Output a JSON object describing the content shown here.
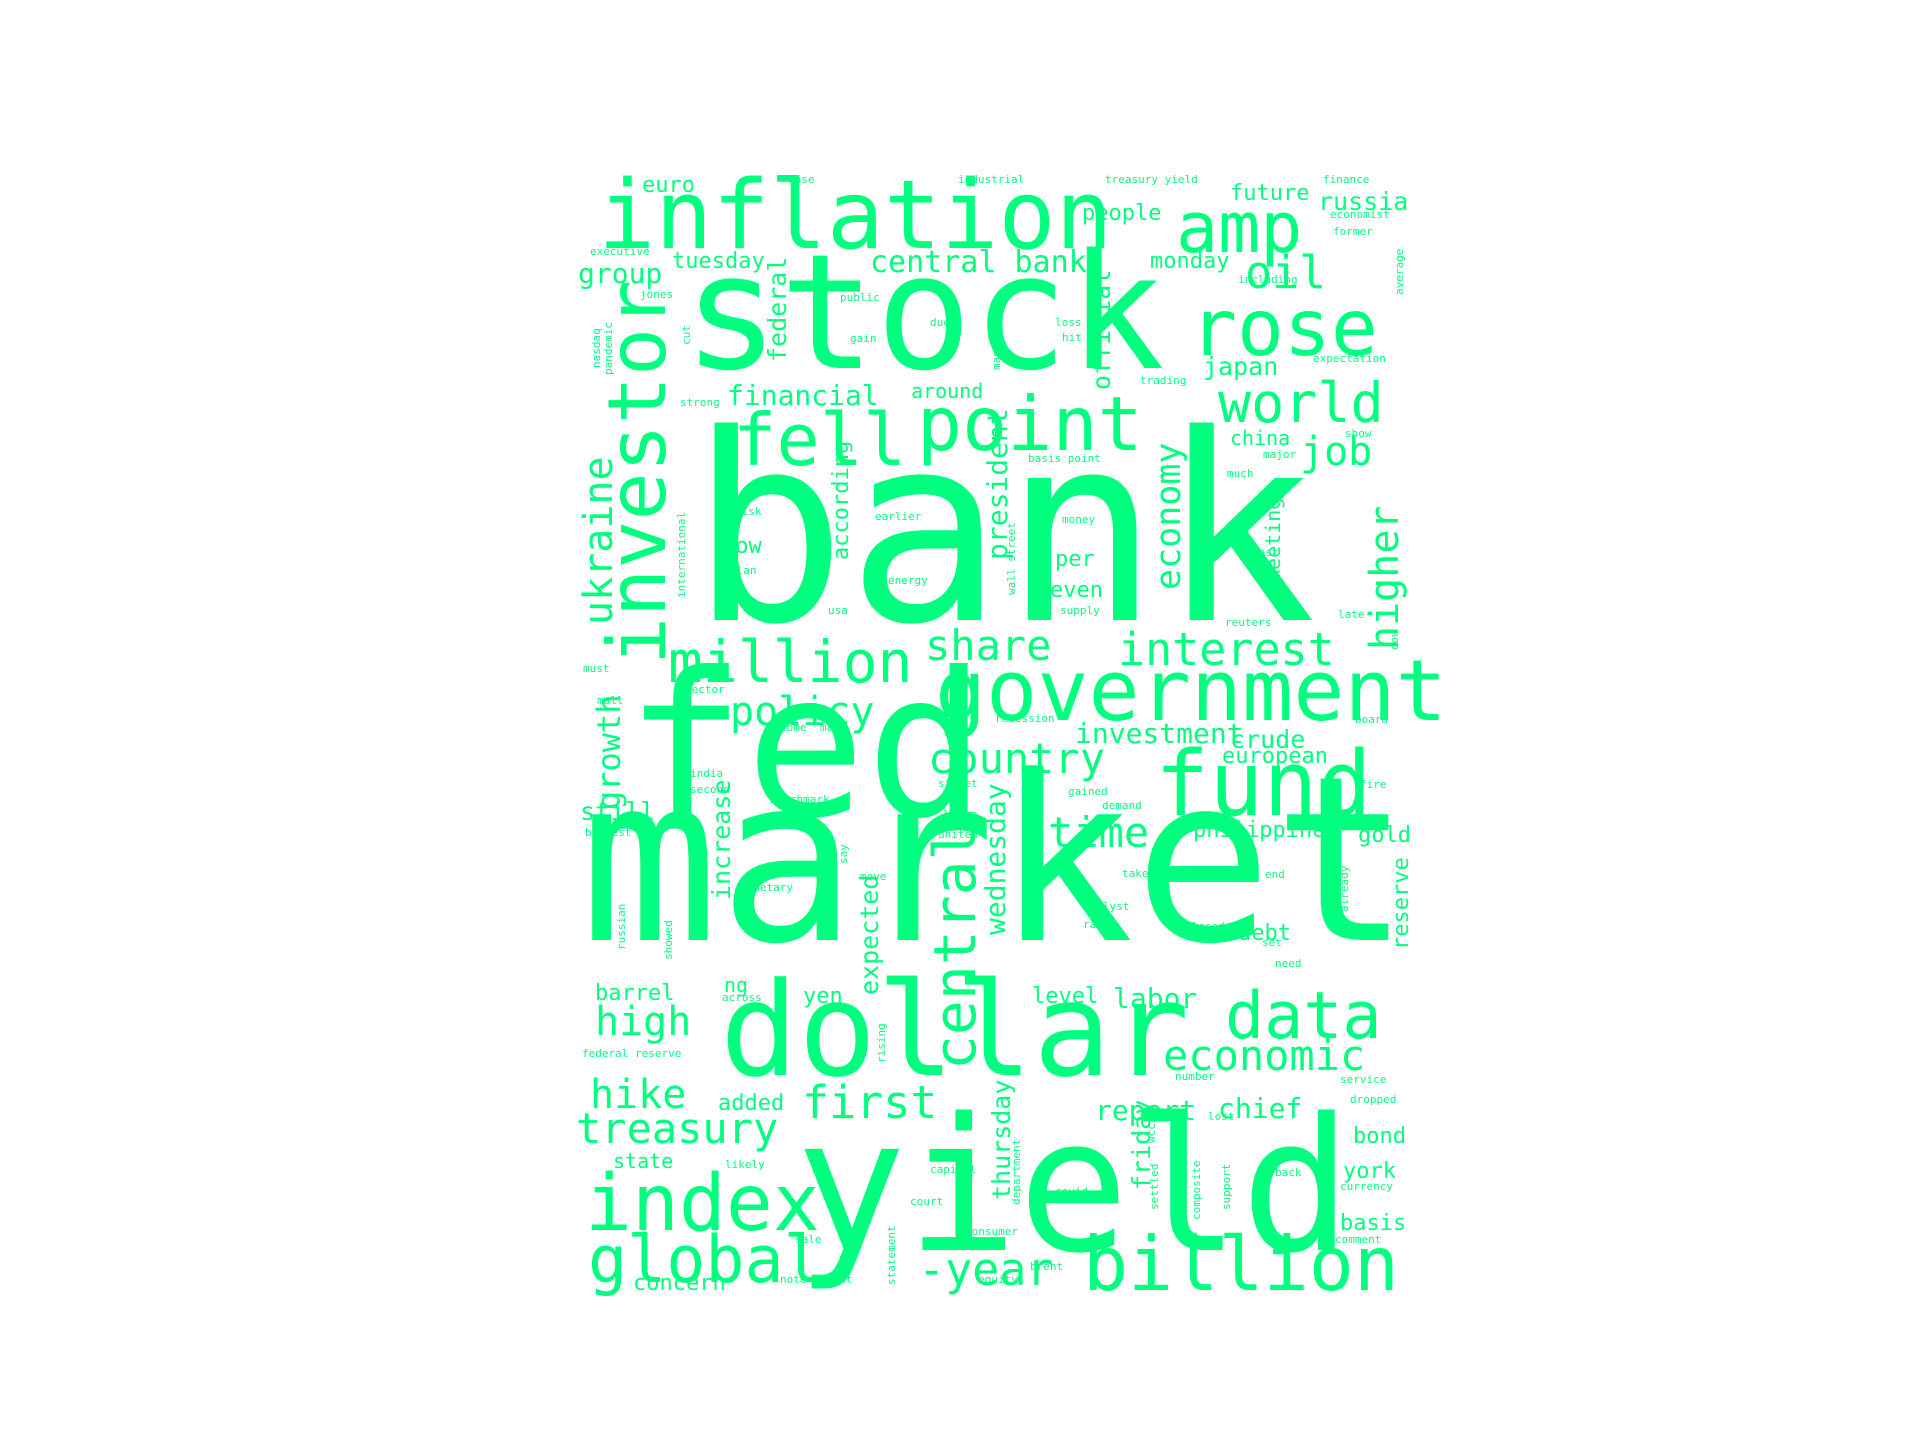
{
  "cloud": {
    "color": "#00ff7f",
    "background": "#ffffff",
    "words": [
      "bank",
      "market",
      "fed",
      "stock",
      "yield",
      "dollar",
      "inflation",
      "investor",
      "government",
      "fund",
      "index",
      "billion",
      "point",
      "fell",
      "rose",
      "amp",
      "data",
      "global",
      "million",
      "interest",
      "treasury",
      "economic",
      "share",
      "country",
      "policy",
      "first",
      "world",
      "oil",
      "ukraine",
      "higher",
      "central",
      "economy",
      "time",
      "job",
      "hike",
      "high",
      "growth",
      "-year",
      "central bank",
      "financial",
      "investment",
      "president",
      "wednesday",
      "japan",
      "crude",
      "russia",
      "people",
      "european",
      "report",
      "chief",
      "labor",
      "increase",
      "expected",
      "thursday",
      "friday",
      "philippine",
      "according",
      "group",
      "tuesday",
      "monday",
      "future",
      "euro",
      "official",
      "federal",
      "around",
      "low",
      "still",
      "barrel",
      "level",
      "added",
      "yen",
      "debt",
      "gold",
      "reserve",
      "bond",
      "york",
      "basis",
      "state",
      "concern",
      "even",
      "per",
      "meeting",
      "china",
      "ng",
      "case",
      "industrial",
      "treasury yield",
      "finance",
      "economist",
      "former",
      "executive",
      "including",
      "average",
      "jones",
      "public",
      "nasdaq",
      "cut",
      "due",
      "loss",
      "management",
      "pandemic",
      "gain",
      "hit",
      "expectation",
      "trading",
      "strong",
      "basis point",
      "show",
      "much",
      "major",
      "risk",
      "earlier",
      "money",
      "plan",
      "wall street",
      "international",
      "energy",
      "cost",
      "usa",
      "supply",
      "reuters",
      "late",
      "dow",
      "must",
      "sector",
      "mall",
      "recession",
      "board",
      "come",
      "many",
      "india",
      "street",
      "gained",
      "second",
      "benchmark",
      "demand",
      "lower",
      "fire",
      "biggest",
      "united",
      "say",
      "take",
      "end",
      "monetary",
      "move",
      "analyst",
      "already",
      "russian",
      "showed",
      "raise",
      "closed",
      "set",
      "need",
      "across",
      "rising",
      "industry",
      "federal reserve",
      "number",
      "service",
      "dropped",
      "wcci",
      "lost",
      "likely",
      "capital",
      "department",
      "settled",
      "composite",
      "support",
      "back",
      "court",
      "covid-",
      "currency",
      "consumer",
      "sale",
      "statement",
      "comment",
      "note",
      "next",
      "equity",
      "brent"
    ]
  }
}
